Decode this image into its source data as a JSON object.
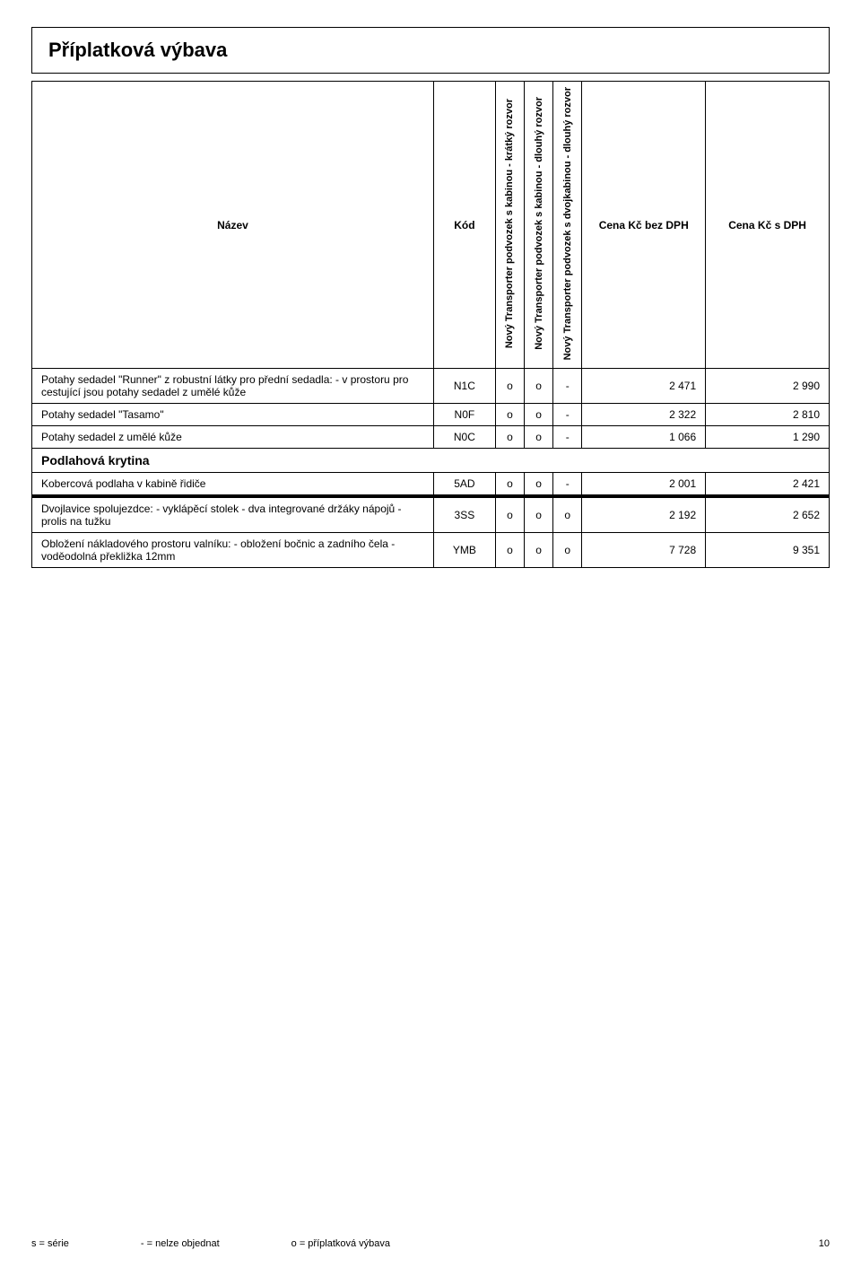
{
  "title": "Příplatková výbava",
  "columns": {
    "name": "Název",
    "code": "Kód",
    "v1": "Nový Transporter podvozek s kabinou - krátký rozvor",
    "v2": "Nový Transporter podvozek s kabinou - dlouhý rozvor",
    "v3": "Nový Transporter podvozek s dvojkabinou - dlouhý rozvor",
    "price1": "Cena Kč bez DPH",
    "price2": "Cena Kč s DPH"
  },
  "rows": [
    {
      "type": "data",
      "name": "Potahy sedadel \"Runner\" z robustní látky pro přední sedadla: - v prostoru pro cestující jsou potahy sedadel z umělé kůže",
      "code": "N1C",
      "v1": "o",
      "v2": "o",
      "v3": "-",
      "p1": "2 471",
      "p2": "2 990"
    },
    {
      "type": "data",
      "name": "Potahy sedadel \"Tasamo\"",
      "code": "N0F",
      "v1": "o",
      "v2": "o",
      "v3": "-",
      "p1": "2 322",
      "p2": "2 810"
    },
    {
      "type": "data",
      "name": "Potahy sedadel z umělé kůže",
      "code": "N0C",
      "v1": "o",
      "v2": "o",
      "v3": "-",
      "p1": "1 066",
      "p2": "1 290"
    },
    {
      "type": "section",
      "name": "Podlahová krytina"
    },
    {
      "type": "data",
      "name": "Kobercová podlaha v kabině řidiče",
      "code": "5AD",
      "v1": "o",
      "v2": "o",
      "v3": "-",
      "p1": "2 001",
      "p2": "2 421"
    },
    {
      "type": "thick"
    },
    {
      "type": "data",
      "name": "Dvojlavice spolujezdce: - vyklápěcí stolek - dva integrované držáky nápojů - prolis na tužku",
      "code": "3SS",
      "v1": "o",
      "v2": "o",
      "v3": "o",
      "p1": "2 192",
      "p2": "2 652"
    },
    {
      "type": "data",
      "name": "Obložení nákladového prostoru valníku: - obložení bočnic a zadního čela - voděodolná překližka 12mm",
      "code": "YMB",
      "v1": "o",
      "v2": "o",
      "v3": "o",
      "p1": "7 728",
      "p2": "9 351"
    }
  ],
  "footer": {
    "legend1": "s = série",
    "legend2": "- = nelze objednat",
    "legend3": "o = příplatková výbava",
    "page": "10"
  },
  "layout": {
    "col_widths": {
      "name": 390,
      "code": 60,
      "v": 28,
      "price": 110
    }
  }
}
